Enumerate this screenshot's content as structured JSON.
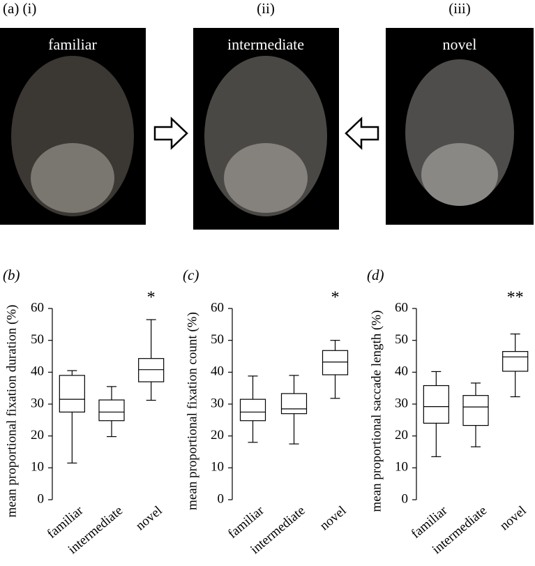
{
  "panel_a": {
    "panels": [
      {
        "tag": "(a) (i)",
        "label": "familiar"
      },
      {
        "tag": "(ii)",
        "label": "intermediate"
      },
      {
        "tag": "(iii)",
        "label": "novel"
      }
    ]
  },
  "chart_data": [
    {
      "type": "boxplot",
      "panel_label": "(b)",
      "ylabel": "mean proportional fixation duration (%)",
      "categories": [
        "familiar",
        "intermediate",
        "novel"
      ],
      "boxes": [
        {
          "whislo": 11.5,
          "q1": 27.5,
          "med": 31.5,
          "q3": 39,
          "whishi": 40.5
        },
        {
          "whislo": 19.8,
          "q1": 24.8,
          "med": 27.5,
          "q3": 31.3,
          "whishi": 35.5
        },
        {
          "whislo": 31.2,
          "q1": 37,
          "med": 40.8,
          "q3": 44.3,
          "whishi": 56.5
        }
      ],
      "annotations": [
        null,
        null,
        "*"
      ],
      "ylim": [
        0,
        60
      ],
      "yticks": [
        0,
        10,
        20,
        30,
        40,
        50,
        60
      ]
    },
    {
      "type": "boxplot",
      "panel_label": "(c)",
      "ylabel": "mean proportional fixation count (%)",
      "categories": [
        "familiar",
        "intermediate",
        "novel"
      ],
      "boxes": [
        {
          "whislo": 18,
          "q1": 24.8,
          "med": 27.5,
          "q3": 31.5,
          "whishi": 38.8
        },
        {
          "whislo": 17.5,
          "q1": 27,
          "med": 28.5,
          "q3": 33.3,
          "whishi": 39
        },
        {
          "whislo": 31.8,
          "q1": 39.2,
          "med": 43.2,
          "q3": 46.8,
          "whishi": 50
        }
      ],
      "annotations": [
        null,
        null,
        "*"
      ],
      "ylim": [
        0,
        60
      ],
      "yticks": [
        0,
        10,
        20,
        30,
        40,
        50,
        60
      ]
    },
    {
      "type": "boxplot",
      "panel_label": "(d)",
      "ylabel": "mean proportional saccade length (%)",
      "categories": [
        "familiar",
        "intermediate",
        "novel"
      ],
      "boxes": [
        {
          "whislo": 13.5,
          "q1": 24,
          "med": 29.2,
          "q3": 35.8,
          "whishi": 40.2
        },
        {
          "whislo": 16.6,
          "q1": 23.3,
          "med": 29.1,
          "q3": 32.7,
          "whishi": 36.6
        },
        {
          "whislo": 32.3,
          "q1": 40.3,
          "med": 44.8,
          "q3": 46.5,
          "whishi": 52
        }
      ],
      "annotations": [
        null,
        null,
        "**"
      ],
      "ylim": [
        0,
        60
      ],
      "yticks": [
        0,
        10,
        20,
        30,
        40,
        50,
        60
      ]
    }
  ]
}
